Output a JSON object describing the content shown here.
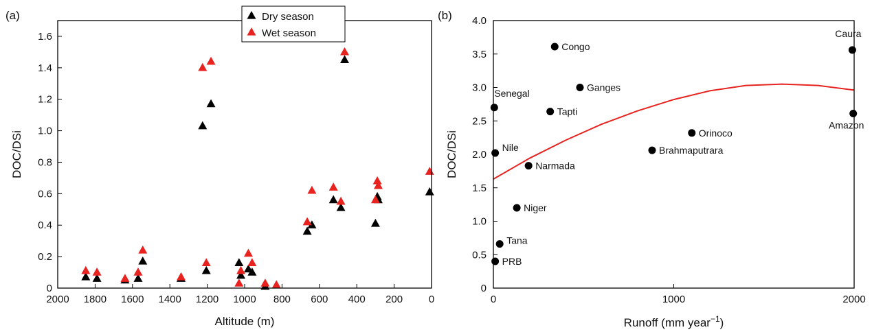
{
  "chart_data": [
    {
      "type": "scatter",
      "panel_label": "(a)",
      "xlabel": "Altitude (m)",
      "ylabel": "DOC/DSi",
      "xlim": [
        2000,
        0
      ],
      "ylim": [
        0,
        1.7
      ],
      "x_ticks": [
        "2000",
        "1800",
        "1600",
        "1400",
        "1200",
        "1000",
        "800",
        "600",
        "400",
        "200",
        "0"
      ],
      "y_ticks": [
        "0",
        "0.2",
        "0.4",
        "0.6",
        "0.8",
        "1.0",
        "1.2",
        "1.4",
        "1.6"
      ],
      "x_tick_values": [
        2000,
        1800,
        1600,
        1400,
        1200,
        1000,
        800,
        600,
        400,
        200,
        0
      ],
      "y_tick_values": [
        0,
        0.2,
        0.4,
        0.6,
        0.8,
        1.0,
        1.2,
        1.4,
        1.6
      ],
      "grid": false,
      "legend_position": "top-center",
      "series": [
        {
          "name": "Dry season",
          "color": "#000000",
          "marker": "triangle",
          "points": [
            [
              1850,
              0.07
            ],
            [
              1790,
              0.06
            ],
            [
              1640,
              0.05
            ],
            [
              1570,
              0.06
            ],
            [
              1545,
              0.17
            ],
            [
              1340,
              0.06
            ],
            [
              1225,
              1.03
            ],
            [
              1205,
              0.11
            ],
            [
              1180,
              1.17
            ],
            [
              1030,
              0.16
            ],
            [
              1020,
              0.08
            ],
            [
              980,
              0.12
            ],
            [
              960,
              0.1
            ],
            [
              890,
              0.01
            ],
            [
              665,
              0.36
            ],
            [
              640,
              0.4
            ],
            [
              525,
              0.56
            ],
            [
              485,
              0.51
            ],
            [
              465,
              1.45
            ],
            [
              300,
              0.41
            ],
            [
              290,
              0.58
            ],
            [
              285,
              0.56
            ],
            [
              10,
              0.61
            ]
          ]
        },
        {
          "name": "Wet season",
          "color": "#e8231f",
          "marker": "triangle",
          "points": [
            [
              1850,
              0.11
            ],
            [
              1790,
              0.1
            ],
            [
              1640,
              0.06
            ],
            [
              1570,
              0.1
            ],
            [
              1545,
              0.24
            ],
            [
              1340,
              0.07
            ],
            [
              1225,
              1.4
            ],
            [
              1205,
              0.16
            ],
            [
              1180,
              1.44
            ],
            [
              1030,
              0.03
            ],
            [
              1020,
              0.11
            ],
            [
              980,
              0.22
            ],
            [
              960,
              0.16
            ],
            [
              890,
              0.03
            ],
            [
              830,
              0.02
            ],
            [
              665,
              0.42
            ],
            [
              640,
              0.62
            ],
            [
              525,
              0.64
            ],
            [
              485,
              0.55
            ],
            [
              465,
              1.5
            ],
            [
              300,
              0.56
            ],
            [
              290,
              0.68
            ],
            [
              285,
              0.65
            ],
            [
              10,
              0.74
            ]
          ]
        }
      ]
    },
    {
      "type": "scatter",
      "panel_label": "(b)",
      "xlabel_main": "Runoff (mm year",
      "xlabel_exponent": "−1",
      "xlabel_close": ")",
      "ylabel": "DOC/DSi",
      "xlim": [
        0,
        2000
      ],
      "ylim": [
        0,
        4.0
      ],
      "x_ticks": [
        "0",
        "1000",
        "2000"
      ],
      "y_ticks": [
        "0",
        "0.5",
        "1.0",
        "1.5",
        "2.0",
        "2.5",
        "3.0",
        "3.5",
        "4.0"
      ],
      "x_tick_values": [
        0,
        1000,
        2000
      ],
      "y_tick_values": [
        0,
        0.5,
        1.0,
        1.5,
        2.0,
        2.5,
        3.0,
        3.5,
        4.0
      ],
      "grid": false,
      "points": [
        {
          "label": "Congo",
          "x": 340,
          "y": 3.61
        },
        {
          "label": "Ganges",
          "x": 480,
          "y": 3.0
        },
        {
          "label": "Senegal",
          "x": 5,
          "y": 2.7
        },
        {
          "label": "Tapti",
          "x": 315,
          "y": 2.64
        },
        {
          "label": "Orinoco",
          "x": 1100,
          "y": 2.32
        },
        {
          "label": "Brahmaputrara",
          "x": 880,
          "y": 2.06
        },
        {
          "label": "Nile",
          "x": 10,
          "y": 2.02
        },
        {
          "label": "Narmada",
          "x": 195,
          "y": 1.83
        },
        {
          "label": "Niger",
          "x": 130,
          "y": 1.2
        },
        {
          "label": "Tana",
          "x": 35,
          "y": 0.66
        },
        {
          "label": "PRB",
          "x": 10,
          "y": 0.4
        },
        {
          "label": "Caura",
          "x": 1990,
          "y": 3.56
        },
        {
          "label": "Amazon",
          "x": 1995,
          "y": 2.61
        }
      ],
      "fit_line": {
        "color": "#e8231f",
        "points": [
          [
            0,
            1.63
          ],
          [
            200,
            1.94
          ],
          [
            400,
            2.21
          ],
          [
            600,
            2.45
          ],
          [
            800,
            2.65
          ],
          [
            1000,
            2.82
          ],
          [
            1200,
            2.95
          ],
          [
            1400,
            3.03
          ],
          [
            1600,
            3.05
          ],
          [
            1800,
            3.03
          ],
          [
            2000,
            2.96
          ]
        ]
      }
    }
  ]
}
